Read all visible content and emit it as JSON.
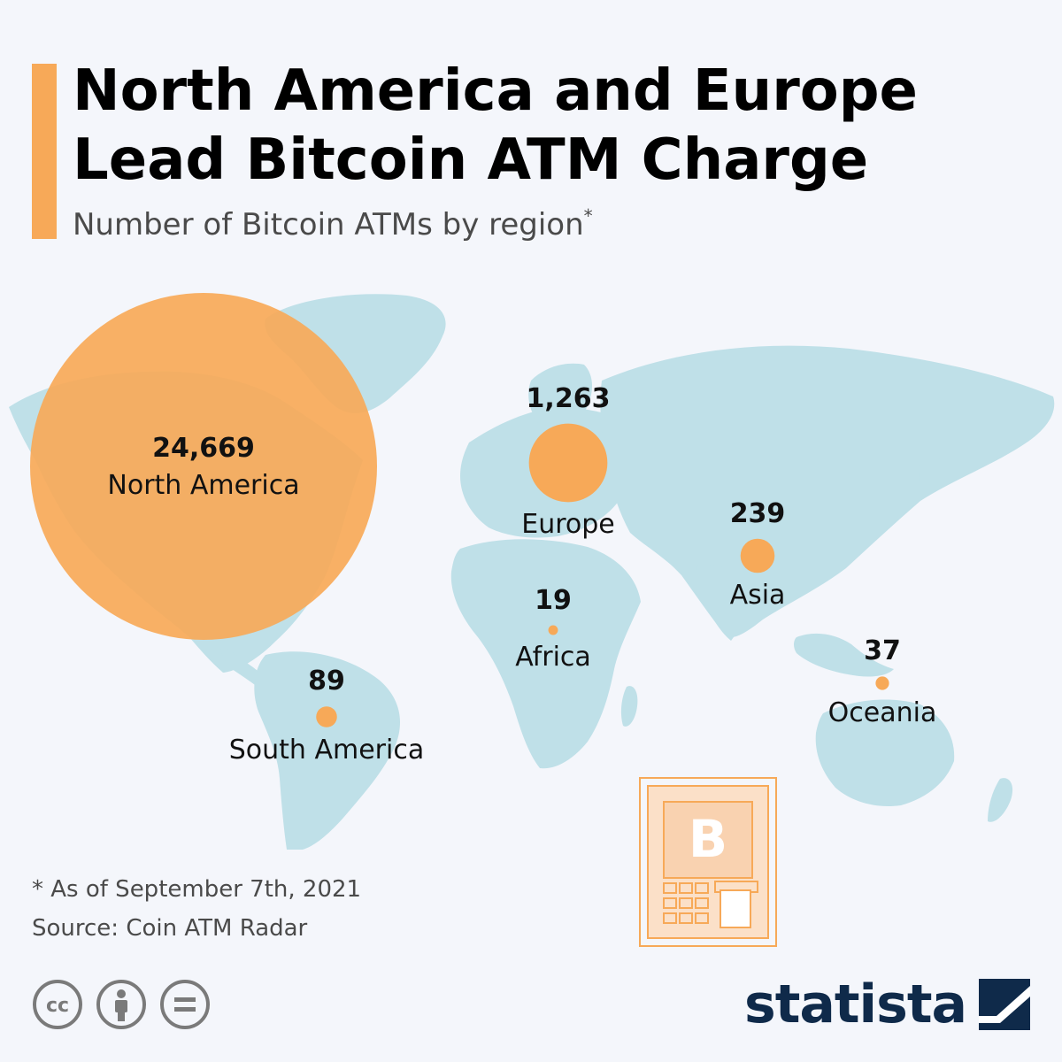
{
  "header": {
    "title": "North America and Europe Lead Bitcoin ATM Charge",
    "subtitle": "Number of Bitcoin ATMs by region",
    "subtitle_marker": "*"
  },
  "map_data": {
    "metric": "Number of Bitcoin ATMs",
    "regions": [
      {
        "name": "North America",
        "value": 24669,
        "value_label": "24,669"
      },
      {
        "name": "Europe",
        "value": 1263,
        "value_label": "1,263"
      },
      {
        "name": "Asia",
        "value": 239,
        "value_label": "239"
      },
      {
        "name": "South America",
        "value": 89,
        "value_label": "89"
      },
      {
        "name": "Oceania",
        "value": 37,
        "value_label": "37"
      },
      {
        "name": "Africa",
        "value": 19,
        "value_label": "19"
      }
    ],
    "colors": {
      "bubble": "#f7a958",
      "land": "#bfe0e8",
      "background": "#f4f6fb"
    }
  },
  "footer": {
    "note": "* As of September 7th, 2021",
    "source": "Source: Coin ATM Radar",
    "license_icons": [
      "cc-icon",
      "person-icon",
      "equals-icon"
    ],
    "logo_text": "statista"
  }
}
